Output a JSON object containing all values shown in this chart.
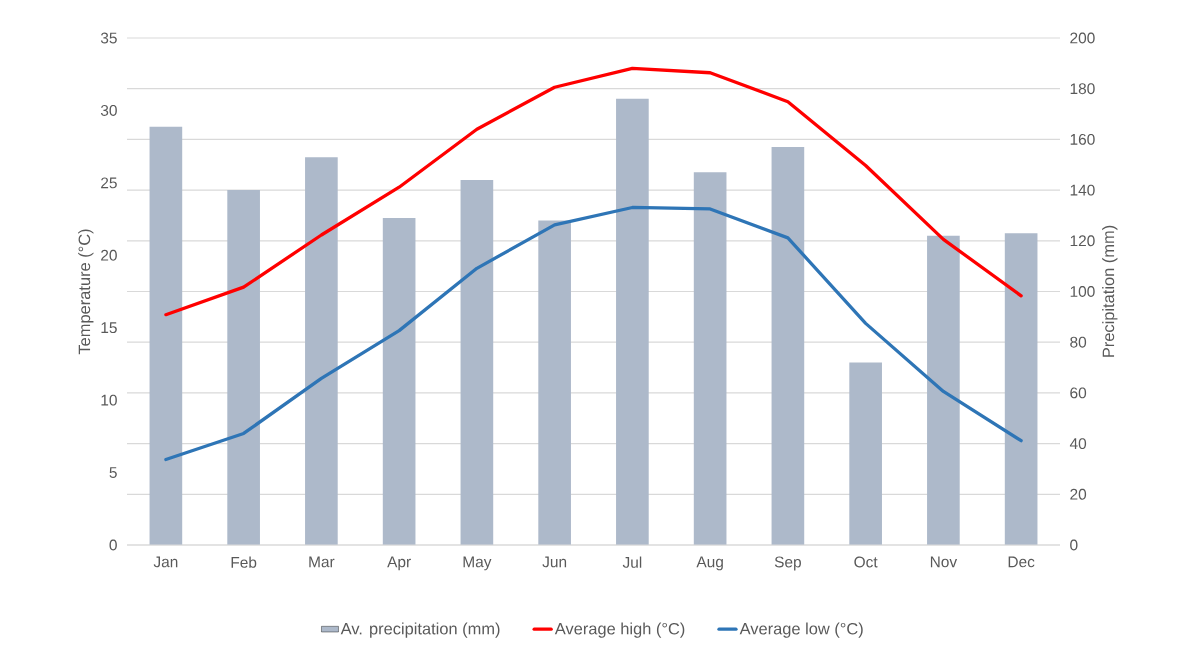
{
  "chart_data": {
    "type": "line",
    "categories": [
      "Jan",
      "Feb",
      "Mar",
      "Apr",
      "May",
      "Jun",
      "Jul",
      "Aug",
      "Sep",
      "Oct",
      "Nov",
      "Dec"
    ],
    "ylabel": "Temperature (°C)",
    "y2label": "Precipitation (mm)",
    "ylim": [
      0,
      35
    ],
    "yticks": [
      0,
      5,
      10,
      15,
      20,
      25,
      30,
      35
    ],
    "y2lim": [
      0,
      200
    ],
    "y2ticks": [
      0,
      20,
      40,
      60,
      80,
      100,
      120,
      140,
      160,
      180,
      200
    ],
    "grid": "y",
    "legend": "bottom",
    "series": [
      {
        "name": "Av. precipitation (mm)",
        "type": "bar",
        "axis": "y2",
        "color": "#adb9ca",
        "values": [
          165,
          140,
          153,
          129,
          144,
          128,
          176,
          147,
          157,
          72,
          122,
          123
        ]
      },
      {
        "name": "Average high (°C)",
        "axis": "y",
        "color": "#ff0000",
        "values": [
          15.9,
          17.8,
          21.4,
          24.7,
          28.7,
          31.6,
          32.9,
          32.6,
          30.6,
          26.2,
          21.1,
          17.2
        ]
      },
      {
        "name": "Average low (°C)",
        "axis": "y",
        "color": "#2e75b6",
        "values": [
          5.9,
          7.7,
          11.5,
          14.8,
          19.1,
          22.1,
          23.3,
          23.2,
          21.2,
          15.3,
          10.6,
          7.2
        ]
      }
    ]
  }
}
